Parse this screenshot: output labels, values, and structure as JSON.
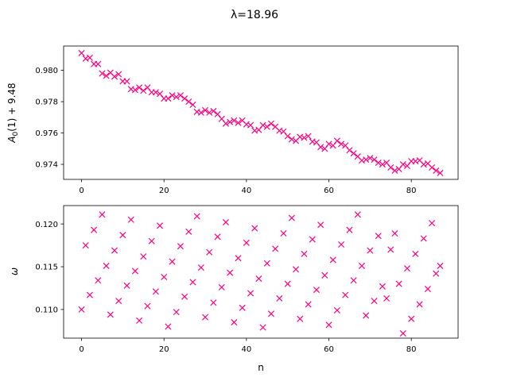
{
  "figure": {
    "suptitle": "λ=18.96",
    "marker_color": "#ff0080"
  },
  "chart_data": [
    {
      "type": "scatter",
      "marker": "x",
      "ylabel_main": "A",
      "ylabel_sub": "0",
      "ylabel_rest": "(1) + 9.48",
      "xlim": [
        -4.35,
        91.35
      ],
      "ylim": [
        0.97304,
        0.98155
      ],
      "xticks": [
        "0",
        "20",
        "40",
        "60",
        "80"
      ],
      "xtick_values": [
        0,
        20,
        40,
        60,
        80
      ],
      "yticks": [
        "0.974",
        "0.976",
        "0.978",
        "0.980"
      ],
      "ytick_values": [
        0.974,
        0.976,
        0.978,
        0.98
      ],
      "series": [
        {
          "x": [
            0,
            1,
            2,
            3,
            4,
            5,
            6,
            7,
            8,
            9,
            10,
            11,
            12,
            13,
            14,
            15,
            16,
            17,
            18,
            19,
            20,
            21,
            22,
            23,
            24,
            25,
            26,
            27,
            28,
            29,
            30,
            31,
            32,
            33,
            34,
            35,
            36,
            37,
            38,
            39,
            40,
            41,
            42,
            43,
            44,
            45,
            46,
            47,
            48,
            49,
            50,
            51,
            52,
            53,
            54,
            55,
            56,
            57,
            58,
            59,
            60,
            61,
            62,
            63,
            64,
            65,
            66,
            67,
            68,
            69,
            70,
            71,
            72,
            73,
            74,
            75,
            76,
            77,
            78,
            79,
            80,
            81,
            82,
            83,
            84,
            85,
            86,
            87
          ],
          "y": [
            0.9811,
            0.98075,
            0.9808,
            0.9804,
            0.9804,
            0.9798,
            0.97965,
            0.97985,
            0.9796,
            0.97975,
            0.9793,
            0.9793,
            0.9788,
            0.97875,
            0.9789,
            0.9787,
            0.9789,
            0.9786,
            0.9786,
            0.9785,
            0.9782,
            0.9782,
            0.9784,
            0.9783,
            0.9784,
            0.9782,
            0.978,
            0.9778,
            0.97735,
            0.9773,
            0.97745,
            0.9773,
            0.9774,
            0.9772,
            0.9769,
            0.9766,
            0.9767,
            0.9768,
            0.97665,
            0.9768,
            0.97655,
            0.9765,
            0.97615,
            0.9762,
            0.9765,
            0.9764,
            0.9766,
            0.9764,
            0.97615,
            0.9761,
            0.9758,
            0.9756,
            0.9755,
            0.97575,
            0.9757,
            0.9758,
            0.97545,
            0.9754,
            0.9751,
            0.975,
            0.9753,
            0.9752,
            0.9755,
            0.9753,
            0.9752,
            0.9749,
            0.9747,
            0.9745,
            0.97425,
            0.9743,
            0.9744,
            0.9743,
            0.9741,
            0.974,
            0.9741,
            0.9738,
            0.9736,
            0.9737,
            0.974,
            0.9739,
            0.9742,
            0.9742,
            0.97425,
            0.974,
            0.97405,
            0.9738,
            0.9736,
            0.97345
          ]
        }
      ]
    },
    {
      "type": "scatter",
      "marker": "x",
      "xlabel": "n",
      "ylabel": "ω",
      "xlim": [
        -4.35,
        91.35
      ],
      "ylim": [
        0.10665,
        0.12215
      ],
      "xticks": [
        "0",
        "20",
        "40",
        "60",
        "80"
      ],
      "xtick_values": [
        0,
        20,
        40,
        60,
        80
      ],
      "yticks": [
        "0.110",
        "0.115",
        "0.120"
      ],
      "ytick_values": [
        0.11,
        0.115,
        0.12
      ],
      "series": [
        {
          "x": [
            0,
            1,
            2,
            3,
            4,
            5,
            6,
            7,
            8,
            9,
            10,
            11,
            12,
            13,
            14,
            15,
            16,
            17,
            18,
            19,
            20,
            21,
            22,
            23,
            24,
            25,
            26,
            27,
            28,
            29,
            30,
            31,
            32,
            33,
            34,
            35,
            36,
            37,
            38,
            39,
            40,
            41,
            42,
            43,
            44,
            45,
            46,
            47,
            48,
            49,
            50,
            51,
            52,
            53,
            54,
            55,
            56,
            57,
            58,
            59,
            60,
            61,
            62,
            63,
            64,
            65,
            66,
            67,
            68,
            69,
            70,
            71,
            72,
            73,
            74,
            75,
            76,
            77,
            78,
            79,
            80,
            81,
            82,
            83,
            84,
            85,
            86,
            87
          ],
          "y": [
            0.11,
            0.1175,
            0.1117,
            0.1193,
            0.1134,
            0.1211,
            0.1151,
            0.1094,
            0.1169,
            0.111,
            0.1187,
            0.1128,
            0.1205,
            0.1145,
            0.1087,
            0.1162,
            0.1104,
            0.118,
            0.1121,
            0.1198,
            0.1138,
            0.108,
            0.1156,
            0.1097,
            0.1174,
            0.1115,
            0.1191,
            0.1132,
            0.1209,
            0.1149,
            0.1091,
            0.1167,
            0.1108,
            0.1185,
            0.1126,
            0.1202,
            0.1143,
            0.1085,
            0.116,
            0.1102,
            0.1178,
            0.1119,
            0.1195,
            0.1136,
            0.1079,
            0.1154,
            0.1095,
            0.1171,
            0.1113,
            0.1189,
            0.113,
            0.1207,
            0.1147,
            0.1089,
            0.1165,
            0.1106,
            0.1182,
            0.1123,
            0.1199,
            0.114,
            0.1082,
            0.1158,
            0.1099,
            0.1176,
            0.1117,
            0.1193,
            0.1134,
            0.1211,
            0.1151,
            0.1093,
            0.1169,
            0.111,
            0.1186,
            0.1127,
            0.1113,
            0.117,
            0.1189,
            0.113,
            0.1072,
            0.1148,
            0.1089,
            0.1165,
            0.1106,
            0.1183,
            0.1124,
            0.1201,
            0.1142,
            0.1151
          ]
        }
      ]
    }
  ]
}
